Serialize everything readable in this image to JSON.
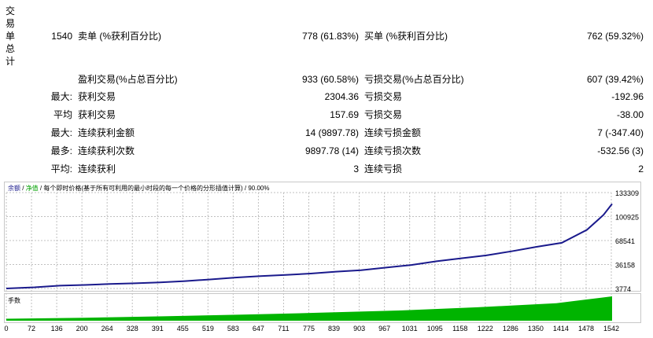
{
  "vertical_label": [
    "交",
    "易",
    "单",
    "总",
    "计"
  ],
  "stats": {
    "total_trades": "1540",
    "sell_label": "卖单 (%获利百分比)",
    "sell_value": "778 (61.83%)",
    "buy_label": "买单 (%获利百分比)",
    "buy_value": "762 (59.32%)",
    "profit_trades_label": "盈利交易(%占总百分比)",
    "profit_trades_value": "933 (60.58%)",
    "loss_trades_label": "亏损交易(%占总百分比)",
    "loss_trades_value": "607 (39.42%)",
    "rows": [
      {
        "prefix": "最大:",
        "label1": "获利交易",
        "value1": "2304.36",
        "label2": "亏损交易",
        "value2": "-192.96"
      },
      {
        "prefix": "平均",
        "label1": "获利交易",
        "value1": "157.69",
        "label2": "亏损交易",
        "value2": "-38.00"
      },
      {
        "prefix": "最大:",
        "label1": "连续获利金额",
        "value1": "14 (9897.78)",
        "label2": "连续亏损金额",
        "value2": "7 (-347.40)"
      },
      {
        "prefix": "最多:",
        "label1": "连续获利次数",
        "value1": "9897.78 (14)",
        "label2": "连续亏损次数",
        "value2": "-532.56 (3)"
      },
      {
        "prefix": "平均:",
        "label1": "连续获利",
        "value1": "3",
        "label2": "连续亏损",
        "value2": "2"
      }
    ]
  },
  "legend": {
    "balance": "余额",
    "sep1": " / ",
    "equity": "净值",
    "sep2": " / ",
    "mode": "每个即时价格(基于所有可利用的最小时段的每一个价格的分形插值计算)",
    "sep3": " / ",
    "quality": "90.00%"
  },
  "volume_label": "手数",
  "colors": {
    "balance": "#1a1a8c",
    "equity": "#00a000",
    "volume": "#00b400",
    "grid": "#c0c0c0"
  },
  "chart_data": {
    "type": "line",
    "x_ticks": [
      "0",
      "72",
      "136",
      "200",
      "264",
      "328",
      "391",
      "455",
      "519",
      "583",
      "647",
      "711",
      "775",
      "839",
      "903",
      "967",
      "1031",
      "1095",
      "1158",
      "1222",
      "1286",
      "1350",
      "1414",
      "1478",
      "1542"
    ],
    "y_ticks": [
      "133309",
      "100925",
      "68541",
      "36158",
      "3774"
    ],
    "ylim": [
      3774,
      133309
    ],
    "xlim": [
      0,
      1540
    ],
    "series": [
      {
        "name": "余额",
        "x": [
          0,
          72,
          136,
          200,
          264,
          328,
          391,
          455,
          519,
          583,
          647,
          711,
          775,
          839,
          903,
          967,
          1031,
          1095,
          1158,
          1222,
          1286,
          1350,
          1414,
          1478,
          1520,
          1542
        ],
        "y": [
          3774,
          5400,
          7600,
          8600,
          9800,
          10800,
          12000,
          13800,
          16000,
          18500,
          20500,
          22000,
          24000,
          26500,
          28500,
          32000,
          35500,
          40500,
          44500,
          48500,
          54000,
          60000,
          65500,
          83000,
          103000,
          118000
        ]
      }
    ],
    "volume": {
      "x": [
        0,
        200,
        400,
        600,
        800,
        1000,
        1200,
        1400,
        1542
      ],
      "y": [
        0.08,
        0.12,
        0.18,
        0.25,
        0.33,
        0.42,
        0.55,
        0.72,
        1.0
      ]
    }
  }
}
